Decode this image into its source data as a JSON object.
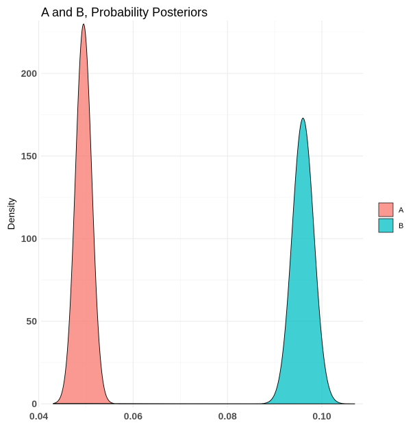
{
  "chart_data": {
    "type": "area",
    "title": "A and B, Probability Posteriors",
    "xlabel": "",
    "ylabel": "Density",
    "xlim": [
      0.0405,
      0.1087
    ],
    "ylim": [
      -2,
      232
    ],
    "x_ticks": [
      0.04,
      0.06,
      0.08,
      0.1
    ],
    "x_tick_labels": [
      "0.04",
      "0.06",
      "0.08",
      "0.10"
    ],
    "y_ticks": [
      0,
      50,
      100,
      150,
      200
    ],
    "y_tick_labels": [
      "0",
      "50",
      "100",
      "150",
      "200"
    ],
    "grid": true,
    "legend_position": "right",
    "x_range": [
      0.043,
      0.107
    ],
    "series": [
      {
        "name": "A",
        "color": "#F8766D",
        "peak_x": 0.0495,
        "peak_density": 230,
        "sd": 0.00173
      },
      {
        "name": "B",
        "color": "#00BFC4",
        "peak_x": 0.096,
        "peak_density": 173,
        "sd": 0.00231
      }
    ]
  }
}
